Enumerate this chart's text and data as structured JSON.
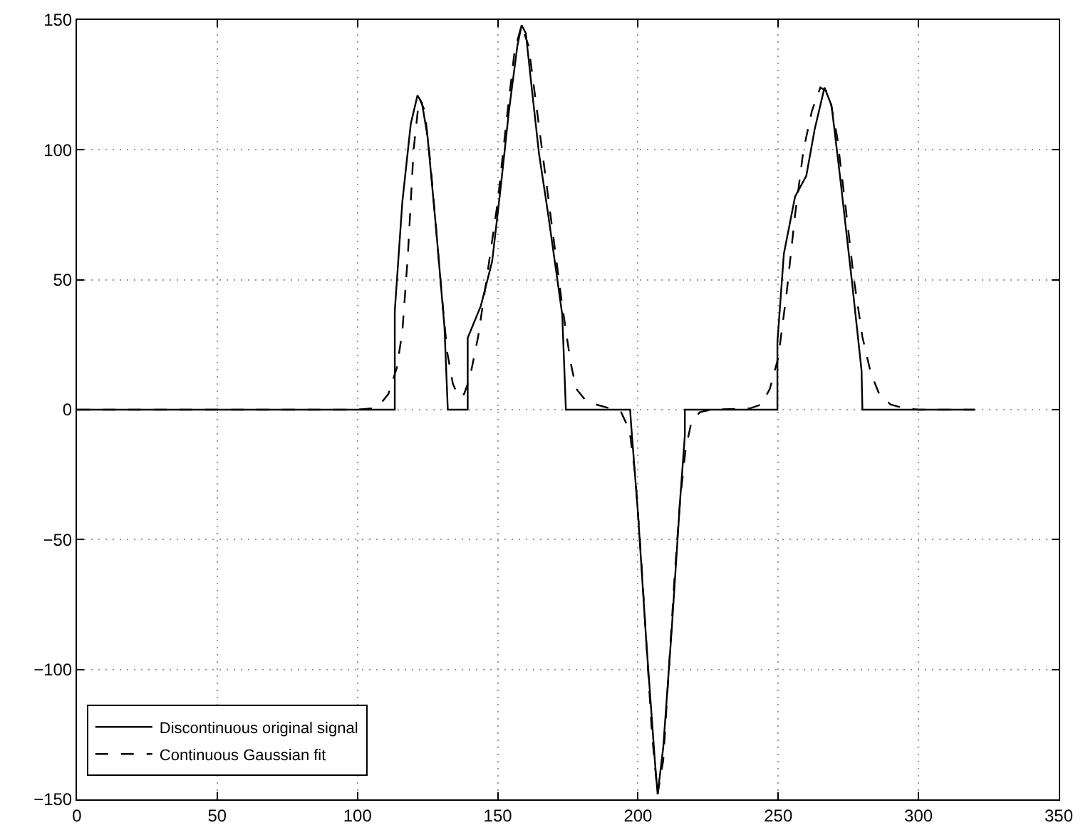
{
  "chart_data": {
    "type": "line",
    "xlim": [
      0,
      350
    ],
    "xticks": [
      0,
      50,
      100,
      150,
      200,
      250,
      300,
      350
    ],
    "ylim": [
      -150,
      150
    ],
    "yticks": [
      {
        "value": -150,
        "label": "−150"
      },
      {
        "value": -100,
        "label": "−100"
      },
      {
        "value": -50,
        "label": "−50"
      },
      0,
      50,
      100,
      150
    ],
    "grid": true,
    "legend": "bottom left",
    "marker": "none",
    "series": [
      {
        "name": "Discontinuous original signal",
        "color": "#000000",
        "line_style": "solid",
        "x": [
          0,
          113.3,
          113.3,
          116,
          119,
          121.4,
          123,
          125,
          128,
          131,
          132.2,
          139.3,
          139.3,
          144,
          148,
          151,
          154,
          157,
          158.5,
          160,
          162,
          164.7,
          168,
          171,
          173,
          174.3,
          197.2,
          197.5,
          200,
          203,
          206,
          207,
          209,
          212,
          215,
          216.7,
          216.7,
          249.7,
          249.7,
          252,
          256,
          260,
          263,
          266.5,
          269,
          272,
          276.3,
          279.7,
          280,
          320
        ],
        "values": [
          0,
          0,
          38,
          80,
          110,
          121,
          118,
          105,
          70,
          32,
          0,
          0,
          27.6,
          40,
          57,
          85,
          115,
          140,
          148,
          145,
          125,
          98.7,
          75,
          52,
          36.5,
          0,
          0,
          -5,
          -40,
          -90,
          -135,
          -148,
          -130,
          -85,
          -35,
          -10,
          0,
          0,
          26,
          60,
          82,
          90,
          108,
          124,
          117,
          90,
          49,
          15,
          0,
          0
        ]
      },
      {
        "name": "Continuous Gaussian fit",
        "color": "#000000",
        "line_style": "dashed",
        "x": [
          0,
          100,
          105,
          108,
          111,
          114,
          116,
          118,
          120,
          122,
          124,
          126,
          128,
          130,
          132,
          134,
          136,
          138,
          140,
          143,
          146,
          150,
          153,
          156,
          158.5,
          161,
          164,
          167,
          170,
          173,
          176,
          178,
          181,
          185,
          190,
          194,
          197,
          199,
          201,
          203,
          205,
          207,
          209,
          211,
          213,
          215,
          217,
          219,
          222,
          226,
          240,
          244,
          247,
          250,
          253,
          256,
          259,
          262,
          265,
          268,
          271,
          274,
          277,
          280,
          283,
          286,
          290,
          295,
          300,
          320
        ],
        "values": [
          0,
          0,
          0.5,
          2,
          6,
          16,
          30,
          60,
          100,
          120,
          115,
          95,
          70,
          45,
          22,
          10,
          5,
          6,
          12,
          28,
          50,
          80,
          110,
          138,
          148,
          140,
          115,
          90,
          65,
          40,
          18,
          8,
          4,
          2,
          0.5,
          -1,
          -8,
          -25,
          -55,
          -90,
          -125,
          -148,
          -135,
          -100,
          -65,
          -35,
          -15,
          -5,
          -1,
          0,
          0.5,
          2,
          8,
          20,
          45,
          75,
          100,
          115,
          124,
          122,
          105,
          78,
          50,
          28,
          14,
          6,
          2,
          0.5,
          0,
          0
        ]
      }
    ]
  }
}
